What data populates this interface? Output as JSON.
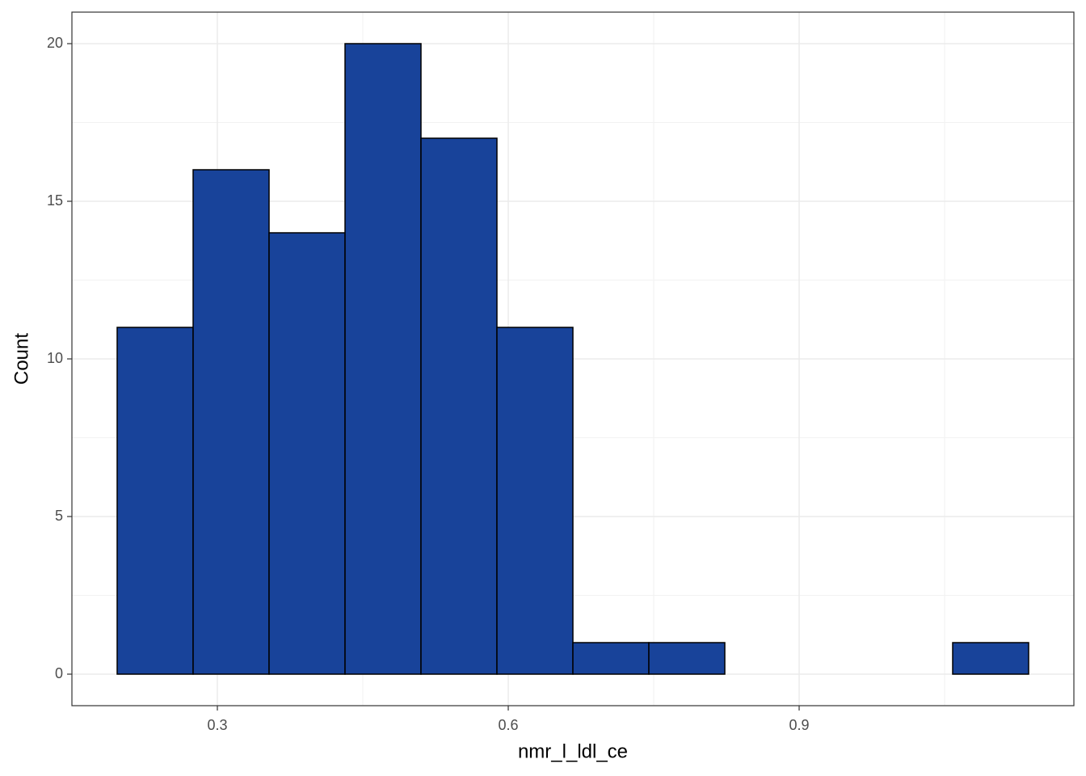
{
  "chart_data": {
    "type": "histogram",
    "x_label": "nmr_l_ldl_ce",
    "y_label": "Count",
    "bins": [
      0.19667,
      0.275,
      0.35333,
      0.43167,
      0.51,
      0.58833,
      0.66667,
      0.745,
      0.82333,
      0.90167,
      0.98,
      1.05833,
      1.13667
    ],
    "counts": [
      11,
      16,
      14,
      20,
      17,
      11,
      1,
      1,
      0,
      0,
      0,
      1
    ],
    "color": "#18439a",
    "edge_color": "#000000",
    "xlim": [
      0.15,
      1.18333
    ],
    "xticks": [
      0.3,
      0.6,
      0.9
    ],
    "ylim": [
      -1,
      21
    ],
    "yticks": [
      0,
      5,
      10,
      15,
      20
    ],
    "grid": true
  }
}
